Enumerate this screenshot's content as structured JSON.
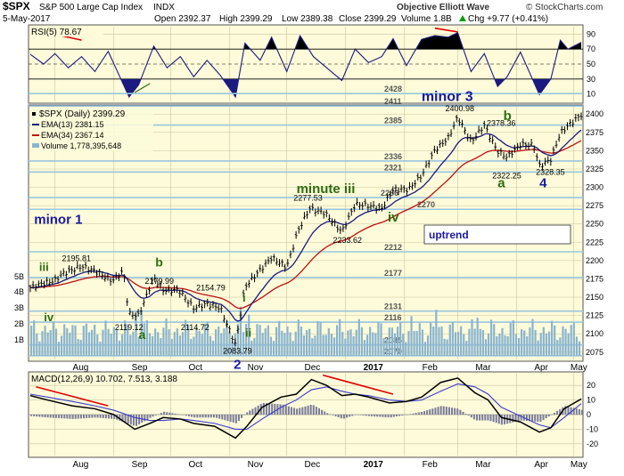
{
  "header": {
    "symbol": "$SPX",
    "name": "S&P 500 Large Cap Index",
    "exchange": "INDX",
    "date": "5-May-2017",
    "open": "Open 2392.37",
    "high": "High 2399.29",
    "low": "Low 2389.38",
    "close": "Close 2399.29",
    "volume": "Volume 1.8B",
    "chg": "Chg +9.77 (+0.41%)",
    "chg_arrow": "up-arrow",
    "source": "© StockCharts.com",
    "watermark": "Objective Elliott Wave"
  },
  "colors": {
    "panel_bg": "#fdfbd9",
    "grid": "#c9c4a0",
    "price": "#000000",
    "ema13": "#1a1a80",
    "ema34": "#c01010",
    "volume": "#8ab4d1",
    "fib_lines": "#9ac6e0",
    "rsi_fill": "#000000",
    "wave_blue": "#1a1aa0",
    "wave_green": "#2e6e10",
    "macd_hist": "#7a7a9a",
    "trend_red": "#e00000"
  },
  "rsi_panel": {
    "label": "RSI(5) 78.67",
    "levels": [
      {
        "value": "90"
      },
      {
        "value": "70"
      },
      {
        "value": "50"
      },
      {
        "value": "30"
      },
      {
        "value": "10"
      }
    ]
  },
  "price_panel": {
    "legend": {
      "title": "$SPX (Daily) 2399.29",
      "ema13": "EMA(13) 2381.15",
      "ema34": "EMA(34) 2367.14",
      "volume": "Volume 1,778,395,648"
    },
    "uptrend_label": "uptrend",
    "fib_levels": [
      "2428",
      "2411",
      "2385",
      "2336",
      "2321",
      "2286",
      "2270",
      "2212",
      "2177",
      "2131",
      "2116",
      "2085",
      "2070"
    ],
    "y_ticks": [
      "2400",
      "2375",
      "2350",
      "2325",
      "2300",
      "2275",
      "2250",
      "2225",
      "2200",
      "2175",
      "2150",
      "2125",
      "2100",
      "2075"
    ],
    "vol_ticks": [
      "5B",
      "4B",
      "3B",
      "2B",
      "1B"
    ],
    "x_ticks": [
      "Aug",
      "Sep",
      "Oct",
      "Nov",
      "Dec",
      "2017",
      "Feb",
      "Mar",
      "Apr",
      "May"
    ],
    "price_annotations": [
      "2400.98",
      "2378.36",
      "2322.25",
      "2328.35",
      "2277.53",
      "2233.62",
      "2195.81",
      "2179.99",
      "2154.79",
      "2119.12",
      "2114.72",
      "2083.79"
    ],
    "wave_labels": [
      {
        "text": "minor 3",
        "color": "blue"
      },
      {
        "text": "minor 1",
        "color": "blue"
      },
      {
        "text": "minute iii",
        "color": "green"
      },
      {
        "text": "iv",
        "color": "green"
      },
      {
        "text": "b",
        "color": "green"
      },
      {
        "text": "a",
        "color": "green"
      },
      {
        "text": "4",
        "color": "blue"
      },
      {
        "text": "iii",
        "color": "green"
      },
      {
        "text": "iv",
        "color": "green"
      },
      {
        "text": "b",
        "color": "green"
      },
      {
        "text": "a",
        "color": "green"
      },
      {
        "text": "i",
        "color": "green"
      },
      {
        "text": "ii",
        "color": "green"
      },
      {
        "text": "2",
        "color": "blue"
      }
    ]
  },
  "macd_panel": {
    "label": "MACD(12,26,9) 10.702, 7.513, 3.188",
    "y_ticks": [
      "20",
      "10",
      "0",
      "-10",
      "-20"
    ],
    "x_ticks": [
      "Aug",
      "Sep",
      "Oct",
      "Nov",
      "Dec",
      "2017",
      "Feb",
      "Mar",
      "Apr",
      "May"
    ]
  },
  "chart_data": {
    "type": "line",
    "title": "$SPX S&P 500 Large Cap Index INDX",
    "x_range": [
      "2016-07-19",
      "2017-05-05"
    ],
    "price_ylim": [
      2065,
      2410
    ],
    "price_series": [
      [
        "2016-07-19",
        2163
      ],
      [
        "2016-07-26",
        2169
      ],
      [
        "2016-08-01",
        2173
      ],
      [
        "2016-08-05",
        2182
      ],
      [
        "2016-08-15",
        2192
      ],
      [
        "2016-08-22",
        2186
      ],
      [
        "2016-08-31",
        2172
      ],
      [
        "2016-09-06",
        2186
      ],
      [
        "2016-09-09",
        2127
      ],
      [
        "2016-09-14",
        2125
      ],
      [
        "2016-09-22",
        2177
      ],
      [
        "2016-09-27",
        2159
      ],
      [
        "2016-10-05",
        2160
      ],
      [
        "2016-10-13",
        2135
      ],
      [
        "2016-10-20",
        2141
      ],
      [
        "2016-10-27",
        2135
      ],
      [
        "2016-11-04",
        2085
      ],
      [
        "2016-11-09",
        2164
      ],
      [
        "2016-11-17",
        2187
      ],
      [
        "2016-11-23",
        2204
      ],
      [
        "2016-12-01",
        2191
      ],
      [
        "2016-12-07",
        2241
      ],
      [
        "2016-12-13",
        2271
      ],
      [
        "2016-12-21",
        2265
      ],
      [
        "2016-12-30",
        2239
      ],
      [
        "2017-01-06",
        2277
      ],
      [
        "2017-01-13",
        2275
      ],
      [
        "2017-01-20",
        2271
      ],
      [
        "2017-01-26",
        2297
      ],
      [
        "2017-02-03",
        2297
      ],
      [
        "2017-02-10",
        2316
      ],
      [
        "2017-02-17",
        2351
      ],
      [
        "2017-02-24",
        2367
      ],
      [
        "2017-03-01",
        2396
      ],
      [
        "2017-03-08",
        2362
      ],
      [
        "2017-03-15",
        2385
      ],
      [
        "2017-03-22",
        2349
      ],
      [
        "2017-03-27",
        2341
      ],
      [
        "2017-04-03",
        2359
      ],
      [
        "2017-04-10",
        2357
      ],
      [
        "2017-04-13",
        2329
      ],
      [
        "2017-04-19",
        2338
      ],
      [
        "2017-04-24",
        2374
      ],
      [
        "2017-04-28",
        2384
      ],
      [
        "2017-05-05",
        2399
      ]
    ],
    "rsi_ylim": [
      0,
      100
    ],
    "rsi_series": [
      [
        "2016-07-19",
        63
      ],
      [
        "2016-07-26",
        50
      ],
      [
        "2016-08-01",
        64
      ],
      [
        "2016-08-08",
        45
      ],
      [
        "2016-08-15",
        60
      ],
      [
        "2016-08-22",
        40
      ],
      [
        "2016-08-29",
        67
      ],
      [
        "2016-09-09",
        6
      ],
      [
        "2016-09-14",
        22
      ],
      [
        "2016-09-22",
        74
      ],
      [
        "2016-09-29",
        45
      ],
      [
        "2016-10-06",
        60
      ],
      [
        "2016-10-13",
        33
      ],
      [
        "2016-10-20",
        55
      ],
      [
        "2016-10-27",
        35
      ],
      [
        "2016-11-04",
        6
      ],
      [
        "2016-11-09",
        78
      ],
      [
        "2016-11-17",
        55
      ],
      [
        "2016-11-23",
        86
      ],
      [
        "2016-12-01",
        40
      ],
      [
        "2016-12-08",
        88
      ],
      [
        "2016-12-15",
        60
      ],
      [
        "2016-12-22",
        45
      ],
      [
        "2016-12-30",
        28
      ],
      [
        "2017-01-06",
        70
      ],
      [
        "2017-01-13",
        52
      ],
      [
        "2017-01-20",
        60
      ],
      [
        "2017-01-26",
        84
      ],
      [
        "2017-02-02",
        48
      ],
      [
        "2017-02-10",
        83
      ],
      [
        "2017-02-17",
        88
      ],
      [
        "2017-02-24",
        86
      ],
      [
        "2017-03-01",
        92
      ],
      [
        "2017-03-08",
        40
      ],
      [
        "2017-03-15",
        64
      ],
      [
        "2017-03-22",
        20
      ],
      [
        "2017-03-27",
        33
      ],
      [
        "2017-04-03",
        66
      ],
      [
        "2017-04-13",
        9
      ],
      [
        "2017-04-19",
        30
      ],
      [
        "2017-04-24",
        82
      ],
      [
        "2017-04-28",
        70
      ],
      [
        "2017-05-05",
        79
      ]
    ],
    "macd_ylim": [
      -28,
      28
    ],
    "macd_series": [
      [
        "2016-07-19",
        13
      ],
      [
        "2016-07-28",
        10
      ],
      [
        "2016-08-10",
        6
      ],
      [
        "2016-08-22",
        4
      ],
      [
        "2016-09-01",
        0
      ],
      [
        "2016-09-12",
        -10
      ],
      [
        "2016-09-20",
        -6
      ],
      [
        "2016-09-27",
        -2
      ],
      [
        "2016-10-06",
        -3
      ],
      [
        "2016-10-13",
        -6
      ],
      [
        "2016-10-24",
        -8
      ],
      [
        "2016-11-04",
        -16
      ],
      [
        "2016-11-10",
        -8
      ],
      [
        "2016-11-18",
        5
      ],
      [
        "2016-11-28",
        12
      ],
      [
        "2016-12-06",
        14
      ],
      [
        "2016-12-14",
        24
      ],
      [
        "2016-12-22",
        20
      ],
      [
        "2016-12-30",
        13
      ],
      [
        "2017-01-06",
        14
      ],
      [
        "2017-01-13",
        12
      ],
      [
        "2017-01-24",
        8
      ],
      [
        "2017-02-02",
        9
      ],
      [
        "2017-02-10",
        12
      ],
      [
        "2017-02-20",
        22
      ],
      [
        "2017-03-01",
        25
      ],
      [
        "2017-03-10",
        15
      ],
      [
        "2017-03-17",
        10
      ],
      [
        "2017-03-24",
        -2
      ],
      [
        "2017-04-03",
        -5
      ],
      [
        "2017-04-13",
        -12
      ],
      [
        "2017-04-19",
        -9
      ],
      [
        "2017-04-26",
        4
      ],
      [
        "2017-05-05",
        10.7
      ]
    ],
    "signal_series": [
      [
        "2016-07-19",
        14
      ],
      [
        "2016-07-28",
        12
      ],
      [
        "2016-08-10",
        9
      ],
      [
        "2016-08-22",
        6
      ],
      [
        "2016-09-01",
        3
      ],
      [
        "2016-09-12",
        -2
      ],
      [
        "2016-09-20",
        -4
      ],
      [
        "2016-09-27",
        -4
      ],
      [
        "2016-10-06",
        -3
      ],
      [
        "2016-10-13",
        -4
      ],
      [
        "2016-10-24",
        -6
      ],
      [
        "2016-11-04",
        -10
      ],
      [
        "2016-11-10",
        -10
      ],
      [
        "2016-11-18",
        -3
      ],
      [
        "2016-11-28",
        5
      ],
      [
        "2016-12-06",
        10
      ],
      [
        "2016-12-14",
        17
      ],
      [
        "2016-12-22",
        19
      ],
      [
        "2016-12-30",
        16
      ],
      [
        "2017-01-06",
        14
      ],
      [
        "2017-01-13",
        13
      ],
      [
        "2017-01-24",
        10
      ],
      [
        "2017-02-02",
        9
      ],
      [
        "2017-02-10",
        10
      ],
      [
        "2017-02-20",
        16
      ],
      [
        "2017-03-01",
        21
      ],
      [
        "2017-03-10",
        19
      ],
      [
        "2017-03-17",
        14
      ],
      [
        "2017-03-24",
        5
      ],
      [
        "2017-04-03",
        -1
      ],
      [
        "2017-04-13",
        -7
      ],
      [
        "2017-04-19",
        -9
      ],
      [
        "2017-04-26",
        -2
      ],
      [
        "2017-05-05",
        7.5
      ]
    ]
  }
}
